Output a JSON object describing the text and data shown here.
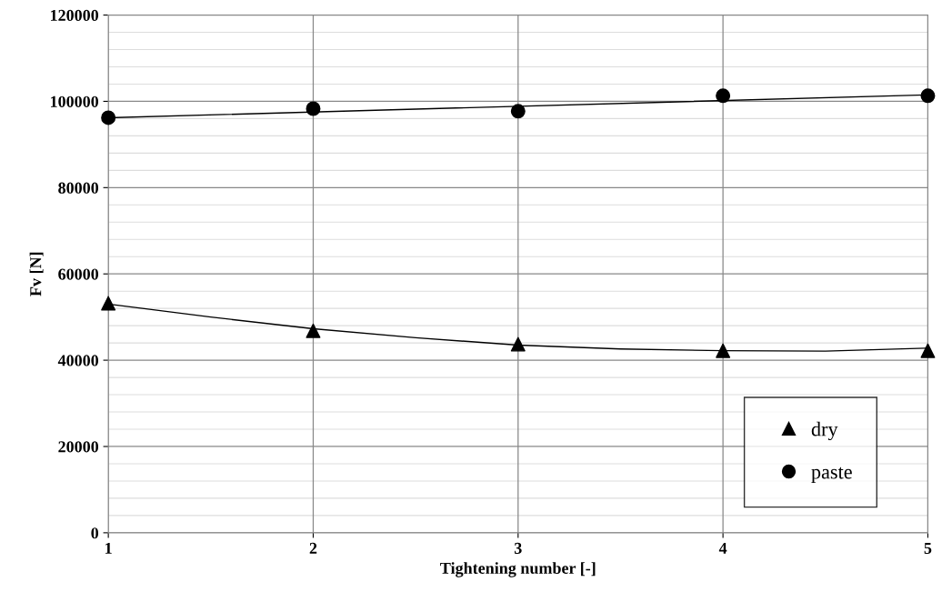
{
  "chart_data": {
    "type": "scatter",
    "xlabel": "Tightening number [-]",
    "ylabel": "Fv [N]",
    "x": [
      1,
      2,
      3,
      4,
      5
    ],
    "series": [
      {
        "name": "dry",
        "color": "#000000",
        "marker": "triangle",
        "values": [
          53200,
          46800,
          43700,
          42200,
          42200
        ]
      },
      {
        "name": "paste",
        "color": "#000000",
        "marker": "circle",
        "values": [
          96200,
          98300,
          97700,
          101300,
          101300
        ]
      },
      {
        "type": "line",
        "color": "#000000",
        "x": [
          1,
          1.5,
          2,
          2.5,
          3,
          3.5,
          4,
          4.5,
          5
        ],
        "values": [
          53000,
          50000,
          47300,
          45200,
          43500,
          42600,
          42200,
          42100,
          42800
        ]
      },
      {
        "type": "line",
        "color": "#000000",
        "x": [
          1,
          5
        ],
        "values": [
          96200,
          101500
        ]
      }
    ],
    "xlim": [
      1,
      5
    ],
    "xticks": [
      1,
      2,
      3,
      4,
      5
    ],
    "ylim": [
      0,
      120000
    ],
    "yticks": [
      0,
      20000,
      40000,
      60000,
      80000,
      100000,
      120000
    ],
    "grid": true,
    "legend": "bottom right"
  }
}
